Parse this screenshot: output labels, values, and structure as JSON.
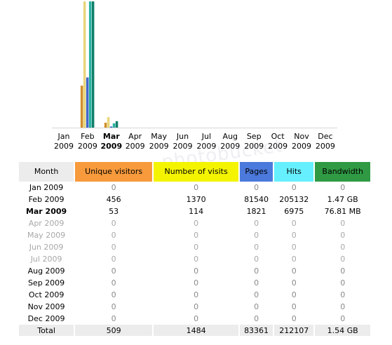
{
  "colors": {
    "unique": "#f79a3c",
    "visits": "#f4f400",
    "pages": "#4b79dc",
    "hits": "#66f0ff",
    "bandwidth": "#2f9a43",
    "bar_unique": "#d08e2a",
    "bar_visits": "#e8d67a",
    "bar_pages": "#4166cc",
    "bar_hits": "#2ab2a0",
    "bar_bandwidth": "#0f7f6a"
  },
  "chart_data": {
    "type": "bar",
    "categories": [
      "Jan 2009",
      "Feb 2009",
      "Mar 2009",
      "Apr 2009",
      "May 2009",
      "Jun 2009",
      "Jul 2009",
      "Aug 2009",
      "Sep 2009",
      "Oct 2009",
      "Nov 2009",
      "Dec 2009"
    ],
    "current_month_index": 2,
    "series": [
      {
        "name": "Unique visitors",
        "values": [
          0,
          456,
          53,
          0,
          0,
          0,
          0,
          0,
          0,
          0,
          0,
          0
        ]
      },
      {
        "name": "Number of visits",
        "values": [
          0,
          1370,
          114,
          0,
          0,
          0,
          0,
          0,
          0,
          0,
          0,
          0
        ]
      },
      {
        "name": "Pages",
        "values": [
          0,
          81540,
          1821,
          0,
          0,
          0,
          0,
          0,
          0,
          0,
          0,
          0
        ]
      },
      {
        "name": "Hits",
        "values": [
          0,
          205132,
          6975,
          0,
          0,
          0,
          0,
          0,
          0,
          0,
          0,
          0
        ]
      },
      {
        "name": "Bandwidth",
        "values_mb": [
          0,
          1505.28,
          76.81,
          0,
          0,
          0,
          0,
          0,
          0,
          0,
          0,
          0
        ]
      }
    ]
  },
  "table": {
    "headers": [
      "Month",
      "Unique visitors",
      "Number of visits",
      "Pages",
      "Hits",
      "Bandwidth"
    ],
    "rows": [
      {
        "month": "Jan 2009",
        "unique": "0",
        "visits": "0",
        "pages": "0",
        "hits": "0",
        "bandwidth": "0"
      },
      {
        "month": "Feb 2009",
        "unique": "456",
        "visits": "1370",
        "pages": "81540",
        "hits": "205132",
        "bandwidth": "1.47 GB"
      },
      {
        "month": "Mar 2009",
        "unique": "53",
        "visits": "114",
        "pages": "1821",
        "hits": "6975",
        "bandwidth": "76.81 MB"
      },
      {
        "month": "Apr 2009",
        "unique": "0",
        "visits": "0",
        "pages": "0",
        "hits": "0",
        "bandwidth": "0"
      },
      {
        "month": "May 2009",
        "unique": "0",
        "visits": "0",
        "pages": "0",
        "hits": "0",
        "bandwidth": "0"
      },
      {
        "month": "Jun 2009",
        "unique": "0",
        "visits": "0",
        "pages": "0",
        "hits": "0",
        "bandwidth": "0"
      },
      {
        "month": "Jul 2009",
        "unique": "0",
        "visits": "0",
        "pages": "0",
        "hits": "0",
        "bandwidth": "0"
      },
      {
        "month": "Aug 2009",
        "unique": "0",
        "visits": "0",
        "pages": "0",
        "hits": "0",
        "bandwidth": "0"
      },
      {
        "month": "Sep 2009",
        "unique": "0",
        "visits": "0",
        "pages": "0",
        "hits": "0",
        "bandwidth": "0"
      },
      {
        "month": "Oct 2009",
        "unique": "0",
        "visits": "0",
        "pages": "0",
        "hits": "0",
        "bandwidth": "0"
      },
      {
        "month": "Nov 2009",
        "unique": "0",
        "visits": "0",
        "pages": "0",
        "hits": "0",
        "bandwidth": "0"
      },
      {
        "month": "Dec 2009",
        "unique": "0",
        "visits": "0",
        "pages": "0",
        "hits": "0",
        "bandwidth": "0"
      }
    ],
    "future_rows": [
      3,
      4,
      5,
      6
    ],
    "total": {
      "label": "Total",
      "unique": "509",
      "visits": "1484",
      "pages": "83361",
      "hits": "212107",
      "bandwidth": "1.54 GB"
    }
  },
  "watermark": "photobucket"
}
